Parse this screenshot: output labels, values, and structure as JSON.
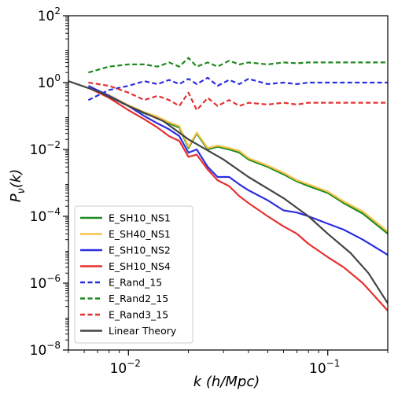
{
  "chart_data": {
    "type": "line",
    "xlabel": "k (h/Mpc)",
    "ylabel": "P_ν(k)",
    "xscale": "log",
    "yscale": "log",
    "xlim": [
      0.005,
      0.2
    ],
    "ylim": [
      1e-08,
      100
    ],
    "grid": false,
    "legend_position": "lower-left",
    "x_ticks": [
      {
        "value": 0.01,
        "label": "10",
        "exp": "−2"
      },
      {
        "value": 0.1,
        "label": "10",
        "exp": "−1"
      }
    ],
    "y_ticks": [
      {
        "value": 100,
        "label": "10",
        "exp": "2"
      },
      {
        "value": 1,
        "label": "10",
        "exp": "0"
      },
      {
        "value": 0.01,
        "label": "10",
        "exp": "−2"
      },
      {
        "value": 0.0001,
        "label": "10",
        "exp": "−4"
      },
      {
        "value": 1e-06,
        "label": "10",
        "exp": "−6"
      },
      {
        "value": 1e-08,
        "label": "10",
        "exp": "−8"
      }
    ],
    "series": [
      {
        "name": "E_SH10_NS1",
        "color": "#1f8a1f",
        "dash": "solid",
        "x": [
          0.0063,
          0.008,
          0.01,
          0.012,
          0.014,
          0.016,
          0.018,
          0.02,
          0.022,
          0.025,
          0.028,
          0.032,
          0.036,
          0.04,
          0.05,
          0.06,
          0.07,
          0.08,
          0.1,
          0.12,
          0.15,
          0.2
        ],
        "y": [
          0.7,
          0.4,
          0.2,
          0.12,
          0.09,
          0.06,
          0.045,
          0.011,
          0.03,
          0.01,
          0.012,
          0.01,
          0.008,
          0.005,
          0.003,
          0.0018,
          0.0011,
          0.0008,
          0.0005,
          0.00025,
          0.00012,
          3e-05
        ]
      },
      {
        "name": "E_SH40_NS1",
        "color": "#f7c24a",
        "dash": "solid",
        "x": [
          0.0063,
          0.008,
          0.01,
          0.012,
          0.014,
          0.016,
          0.018,
          0.02,
          0.022,
          0.025,
          0.028,
          0.032,
          0.036,
          0.04,
          0.05,
          0.06,
          0.07,
          0.08,
          0.1,
          0.12,
          0.15,
          0.2
        ],
        "y": [
          0.75,
          0.42,
          0.21,
          0.13,
          0.095,
          0.065,
          0.05,
          0.012,
          0.032,
          0.011,
          0.013,
          0.011,
          0.009,
          0.0055,
          0.0033,
          0.002,
          0.0012,
          0.0009,
          0.00055,
          0.00028,
          0.00014,
          3.5e-05
        ]
      },
      {
        "name": "E_SH10_NS2",
        "color": "#2b2ee0",
        "dash": "solid",
        "x": [
          0.0063,
          0.008,
          0.01,
          0.012,
          0.014,
          0.016,
          0.018,
          0.02,
          0.022,
          0.025,
          0.028,
          0.032,
          0.036,
          0.04,
          0.05,
          0.06,
          0.07,
          0.08,
          0.1,
          0.12,
          0.15,
          0.2
        ],
        "y": [
          0.8,
          0.4,
          0.2,
          0.1,
          0.06,
          0.04,
          0.025,
          0.008,
          0.01,
          0.003,
          0.0015,
          0.0015,
          0.0009,
          0.0006,
          0.0003,
          0.00015,
          0.00013,
          0.0001,
          6e-05,
          4e-05,
          2e-05,
          7e-06
        ]
      },
      {
        "name": "E_SH10_NS4",
        "color": "#e53030",
        "dash": "solid",
        "x": [
          0.0063,
          0.008,
          0.01,
          0.012,
          0.014,
          0.016,
          0.018,
          0.02,
          0.022,
          0.025,
          0.028,
          0.032,
          0.036,
          0.04,
          0.05,
          0.06,
          0.07,
          0.08,
          0.1,
          0.12,
          0.15,
          0.2
        ],
        "y": [
          0.7,
          0.35,
          0.15,
          0.08,
          0.045,
          0.025,
          0.018,
          0.006,
          0.007,
          0.0025,
          0.0012,
          0.0008,
          0.0004,
          0.00025,
          0.0001,
          5e-05,
          3e-05,
          1.5e-05,
          6e-06,
          3e-06,
          1e-06,
          1.5e-07
        ]
      },
      {
        "name": "E_Rand_15",
        "color": "#2b2ee0",
        "dash": "dashed",
        "x": [
          0.0063,
          0.008,
          0.01,
          0.012,
          0.014,
          0.016,
          0.018,
          0.02,
          0.022,
          0.025,
          0.028,
          0.032,
          0.036,
          0.04,
          0.05,
          0.06,
          0.07,
          0.08,
          0.1,
          0.12,
          0.15,
          0.2
        ],
        "y": [
          0.3,
          0.6,
          0.8,
          1.1,
          0.9,
          1.2,
          0.9,
          1.3,
          0.9,
          1.4,
          0.8,
          1.2,
          0.9,
          1.3,
          0.9,
          1.0,
          0.9,
          1.0,
          1.0,
          1.0,
          1.0,
          1.0
        ]
      },
      {
        "name": "E_Rand2_15",
        "color": "#1f8a1f",
        "dash": "dashed",
        "x": [
          0.0063,
          0.008,
          0.01,
          0.012,
          0.014,
          0.016,
          0.018,
          0.02,
          0.022,
          0.025,
          0.028,
          0.032,
          0.036,
          0.04,
          0.05,
          0.06,
          0.07,
          0.08,
          0.1,
          0.12,
          0.15,
          0.2
        ],
        "y": [
          2.0,
          3.0,
          3.5,
          3.5,
          3.0,
          4.0,
          3.0,
          5.5,
          3.0,
          4.0,
          3.0,
          4.5,
          3.5,
          4.0,
          3.5,
          4.0,
          3.8,
          4.0,
          4.0,
          4.0,
          4.0,
          4.0
        ]
      },
      {
        "name": "E_Rand3_15",
        "color": "#e53030",
        "dash": "dashed",
        "x": [
          0.0063,
          0.008,
          0.01,
          0.012,
          0.014,
          0.016,
          0.018,
          0.02,
          0.022,
          0.025,
          0.028,
          0.032,
          0.036,
          0.04,
          0.05,
          0.06,
          0.07,
          0.08,
          0.1,
          0.12,
          0.15,
          0.2
        ],
        "y": [
          1.0,
          0.8,
          0.5,
          0.3,
          0.4,
          0.3,
          0.2,
          0.5,
          0.15,
          0.35,
          0.2,
          0.3,
          0.2,
          0.25,
          0.22,
          0.25,
          0.22,
          0.25,
          0.25,
          0.25,
          0.25,
          0.25
        ]
      },
      {
        "name": "Linear Theory",
        "color": "#444444",
        "dash": "solid",
        "x": [
          0.005,
          0.007,
          0.01,
          0.015,
          0.02,
          0.03,
          0.04,
          0.06,
          0.08,
          0.1,
          0.13,
          0.16,
          0.2
        ],
        "y": [
          1.1,
          0.55,
          0.2,
          0.07,
          0.02,
          0.005,
          0.0015,
          0.00035,
          0.0001,
          3e-05,
          8e-06,
          2e-06,
          2.5e-07
        ]
      }
    ]
  }
}
